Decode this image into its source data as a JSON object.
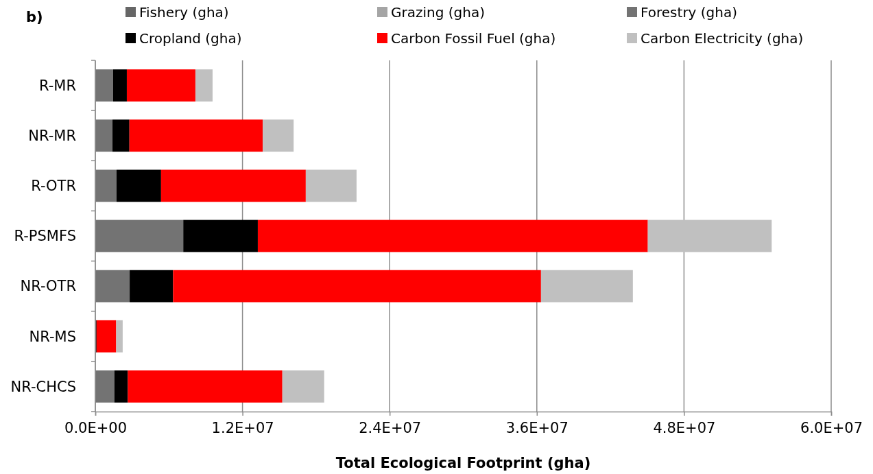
{
  "chart_data": {
    "type": "bar",
    "title": "b)",
    "orientation": "horizontal",
    "stacked": true,
    "xlabel": "Total Ecological Footprint (gha)",
    "categories": [
      "R-MR",
      "NR-MR",
      "R-OTR",
      "R-PSMFS",
      "NR-OTR",
      "NR-MS",
      "NR-CHCS"
    ],
    "series": [
      {
        "name": "Fishery (gha)",
        "color": "#666666",
        "values": [
          0,
          0,
          0,
          0,
          0,
          0,
          0
        ]
      },
      {
        "name": "Grazing (gha)",
        "color": "#a5a5a5",
        "values": [
          0,
          0,
          0,
          0,
          0,
          0,
          0
        ]
      },
      {
        "name": "Forestry (gha)",
        "color": "#737373",
        "values": [
          1450000,
          1400000,
          1730000,
          7170000,
          2800000,
          50000,
          1550000
        ]
      },
      {
        "name": "Cropland (gha)",
        "color": "#000000",
        "values": [
          1120000,
          1380000,
          3630000,
          6080000,
          3540000,
          50000,
          1100000
        ]
      },
      {
        "name": "Carbon Fossil Fuel (gha)",
        "color": "#ff0000",
        "values": [
          5590000,
          10870000,
          11800000,
          31800000,
          30000000,
          1600000,
          12600000
        ]
      },
      {
        "name": "Carbon Electricity (gha)",
        "color": "#c0c0c0",
        "values": [
          1400000,
          2520000,
          4140000,
          10100000,
          7490000,
          530000,
          3410000
        ]
      }
    ],
    "xlim": [
      0,
      60000000
    ],
    "xticks": [
      {
        "value": 0,
        "label": "0.0E+00"
      },
      {
        "value": 12000000,
        "label": "1.2E+07"
      },
      {
        "value": 24000000,
        "label": "2.4E+07"
      },
      {
        "value": 36000000,
        "label": "3.6E+07"
      },
      {
        "value": 48000000,
        "label": "4.8E+07"
      },
      {
        "value": 60000000,
        "label": "6.0E+07"
      }
    ],
    "grid": "x",
    "legend": "top"
  }
}
